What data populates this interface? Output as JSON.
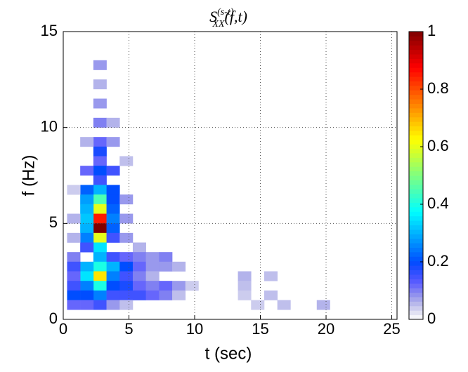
{
  "chart_data": {
    "type": "heatmap",
    "title": {
      "base": "S",
      "superscript": "(s-t)",
      "subscript": "XX",
      "args": "(f,t)"
    },
    "x_label": "t (sec)",
    "y_label": "f (Hz)",
    "xlim": [
      0,
      25.4
    ],
    "xticks": [
      0,
      5,
      10,
      15,
      20,
      25
    ],
    "ylim": [
      0,
      15
    ],
    "yticks": [
      0,
      5,
      10,
      15
    ],
    "clim": [
      0,
      1
    ],
    "cticks": [
      0,
      0.2,
      0.4,
      0.6,
      0.8,
      1
    ],
    "colormap": "jet",
    "grid": true,
    "cells": [
      [
        2.8,
        13.25,
        0.08
      ],
      [
        2.8,
        12.25,
        0.06
      ],
      [
        2.8,
        11.25,
        0.08
      ],
      [
        2.8,
        10.25,
        0.1
      ],
      [
        2.8,
        9.25,
        0.12
      ],
      [
        2.8,
        8.75,
        0.18
      ],
      [
        2.8,
        8.25,
        0.12
      ],
      [
        2.8,
        7.75,
        0.2
      ],
      [
        2.8,
        7.25,
        0.15
      ],
      [
        2.8,
        6.75,
        0.3
      ],
      [
        2.8,
        6.25,
        0.45
      ],
      [
        2.8,
        5.75,
        0.6
      ],
      [
        2.8,
        5.25,
        0.85
      ],
      [
        2.8,
        4.75,
        1
      ],
      [
        2.8,
        4.25,
        0.6
      ],
      [
        2.8,
        3.75,
        0.35
      ],
      [
        2.8,
        3.25,
        0.3
      ],
      [
        2.8,
        2.75,
        0.4
      ],
      [
        2.8,
        2.25,
        0.65
      ],
      [
        2.8,
        1.75,
        0.4
      ],
      [
        2.8,
        1.25,
        0.25
      ],
      [
        2.8,
        0.75,
        0.15
      ],
      [
        1.8,
        9.25,
        0.06
      ],
      [
        1.8,
        7.75,
        0.12
      ],
      [
        1.8,
        6.75,
        0.22
      ],
      [
        1.8,
        6.25,
        0.28
      ],
      [
        1.8,
        5.75,
        0.3
      ],
      [
        1.8,
        5.25,
        0.32
      ],
      [
        1.8,
        4.75,
        0.3
      ],
      [
        1.8,
        4.25,
        0.25
      ],
      [
        1.8,
        3.75,
        0.15
      ],
      [
        1.8,
        2.75,
        0.3
      ],
      [
        1.8,
        2.25,
        0.35
      ],
      [
        1.8,
        1.75,
        0.25
      ],
      [
        1.8,
        1.25,
        0.2
      ],
      [
        1.8,
        0.75,
        0.12
      ],
      [
        3.8,
        10.25,
        0.06
      ],
      [
        3.8,
        9.25,
        0.08
      ],
      [
        3.8,
        7.75,
        0.15
      ],
      [
        3.8,
        6.75,
        0.2
      ],
      [
        3.8,
        6.25,
        0.2
      ],
      [
        3.8,
        5.75,
        0.22
      ],
      [
        3.8,
        5.25,
        0.25
      ],
      [
        3.8,
        4.75,
        0.22
      ],
      [
        3.8,
        4.25,
        0.15
      ],
      [
        3.8,
        3.25,
        0.15
      ],
      [
        3.8,
        2.75,
        0.3
      ],
      [
        3.8,
        2.25,
        0.25
      ],
      [
        3.8,
        1.75,
        0.2
      ],
      [
        3.8,
        1.25,
        0.15
      ],
      [
        3.8,
        0.75,
        0.08
      ],
      [
        0.8,
        6.75,
        0.04
      ],
      [
        0.8,
        5.25,
        0.06
      ],
      [
        0.8,
        4.25,
        0.06
      ],
      [
        0.8,
        3.25,
        0.1
      ],
      [
        0.8,
        2.75,
        0.15
      ],
      [
        0.8,
        2.25,
        0.12
      ],
      [
        0.8,
        1.75,
        0.15
      ],
      [
        0.8,
        1.25,
        0.2
      ],
      [
        0.8,
        0.75,
        0.12
      ],
      [
        4.8,
        8.25,
        0.05
      ],
      [
        4.8,
        6.25,
        0.08
      ],
      [
        4.8,
        5.25,
        0.08
      ],
      [
        4.8,
        4.25,
        0.08
      ],
      [
        4.8,
        3.25,
        0.12
      ],
      [
        4.8,
        2.75,
        0.2
      ],
      [
        4.8,
        2.25,
        0.15
      ],
      [
        4.8,
        1.75,
        0.18
      ],
      [
        4.8,
        1.25,
        0.15
      ],
      [
        4.8,
        0.75,
        0.05
      ],
      [
        5.8,
        3.75,
        0.06
      ],
      [
        5.8,
        3.25,
        0.1
      ],
      [
        5.8,
        2.75,
        0.12
      ],
      [
        5.8,
        2.25,
        0.1
      ],
      [
        5.8,
        1.75,
        0.12
      ],
      [
        5.8,
        1.25,
        0.15
      ],
      [
        6.8,
        3.25,
        0.08
      ],
      [
        6.8,
        2.75,
        0.08
      ],
      [
        6.8,
        2.25,
        0.06
      ],
      [
        6.8,
        1.75,
        0.1
      ],
      [
        6.8,
        1.25,
        0.12
      ],
      [
        7.8,
        3.25,
        0.1
      ],
      [
        7.8,
        2.75,
        0.08
      ],
      [
        7.8,
        1.75,
        0.12
      ],
      [
        7.8,
        1.25,
        0.1
      ],
      [
        8.8,
        2.75,
        0.06
      ],
      [
        8.8,
        1.75,
        0.08
      ],
      [
        8.8,
        1.25,
        0.05
      ],
      [
        9.8,
        1.75,
        0.04
      ],
      [
        13.8,
        2.25,
        0.06
      ],
      [
        13.8,
        1.75,
        0.05
      ],
      [
        13.8,
        1.25,
        0.04
      ],
      [
        14.8,
        0.75,
        0.04
      ],
      [
        15.8,
        2.25,
        0.05
      ],
      [
        15.8,
        1.25,
        0.05
      ],
      [
        16.8,
        0.75,
        0.05
      ],
      [
        19.8,
        0.75,
        0.06
      ]
    ]
  }
}
